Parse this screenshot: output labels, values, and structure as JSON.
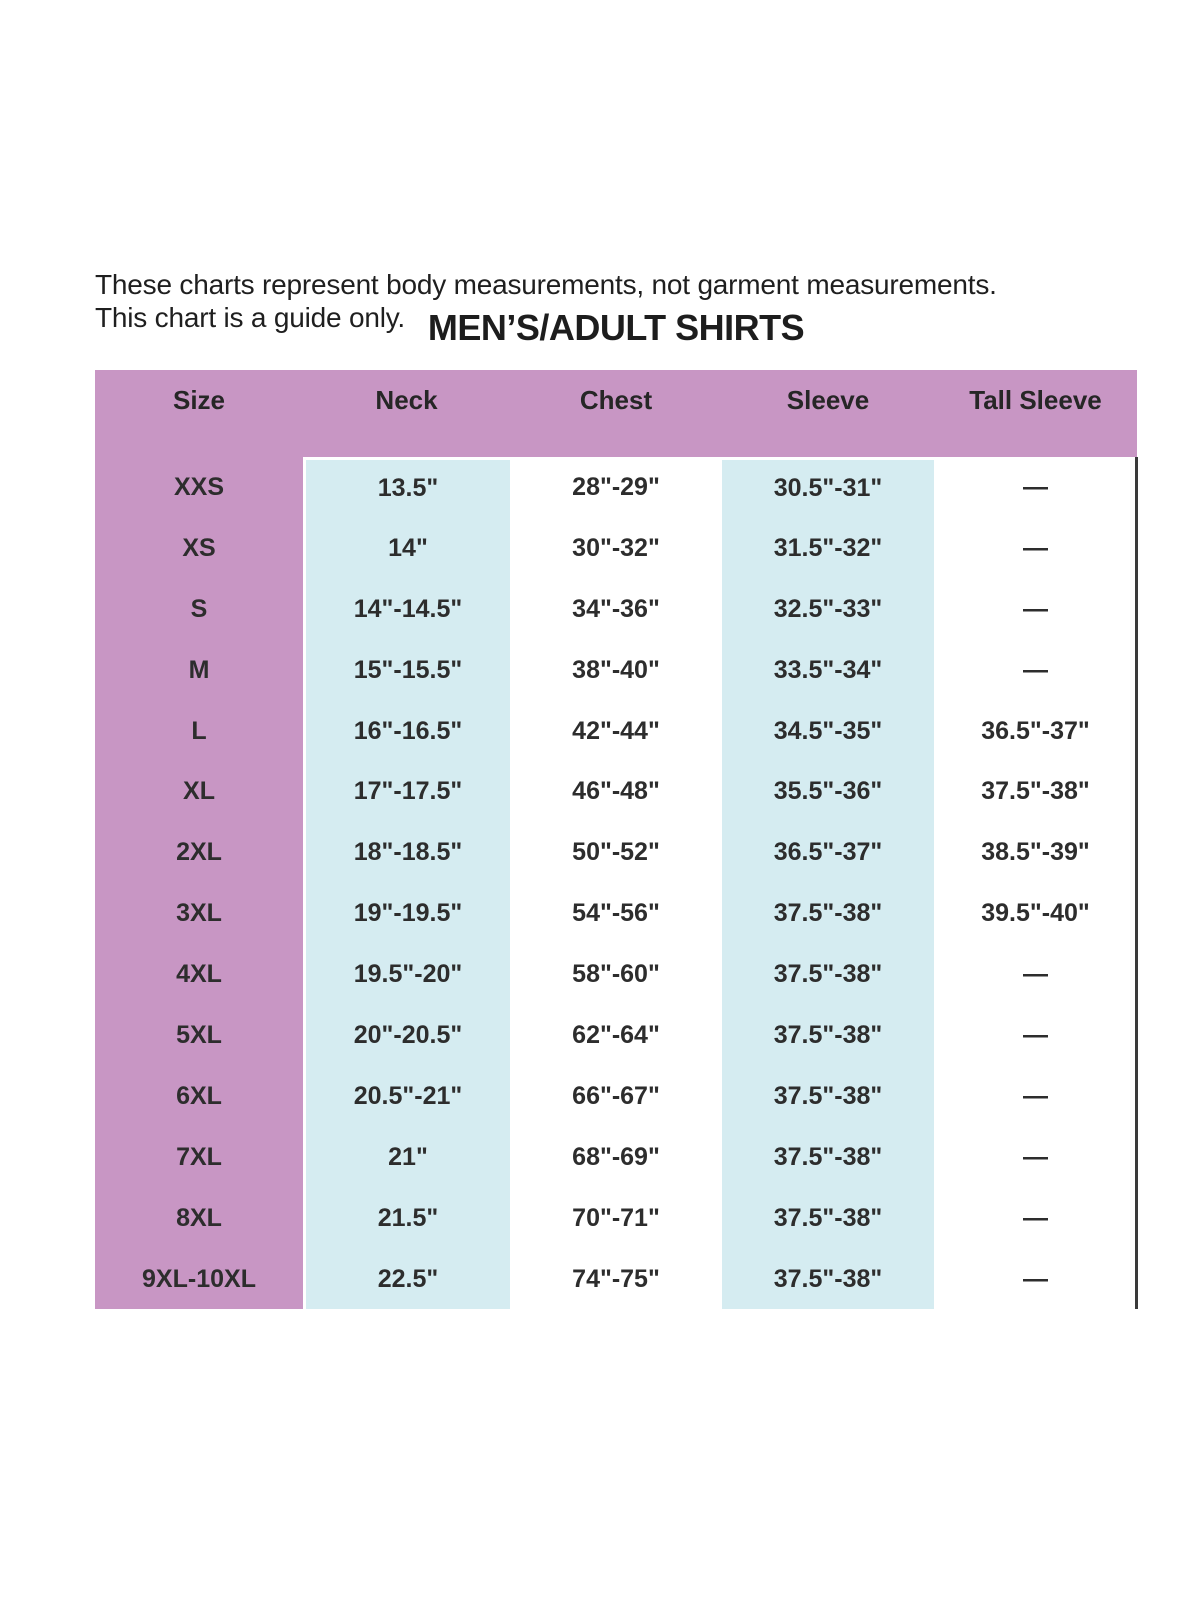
{
  "note": {
    "line1": "These charts represent body measurements, not garment measurements.",
    "line2": "This chart is a guide only."
  },
  "title": "MEN’S/ADULT SHIRTS",
  "empty_marker": "—",
  "colors": {
    "header_bg": "#c896c4",
    "size_column_bg": "#c896c4",
    "band_bg": "#d5ecf1",
    "right_border": "#3a3a3a",
    "page_bg": "#ffffff",
    "text": "#2d2d2d"
  },
  "table": {
    "columns": [
      "Size",
      "Neck",
      "Chest",
      "Sleeve",
      "Tall Sleeve"
    ],
    "rows": [
      [
        "XXS",
        "13.5\"",
        "28\"-29\"",
        "30.5\"-31\"",
        "—"
      ],
      [
        "XS",
        "14\"",
        "30\"-32\"",
        "31.5\"-32\"",
        "—"
      ],
      [
        "S",
        "14\"-14.5\"",
        "34\"-36\"",
        "32.5\"-33\"",
        "—"
      ],
      [
        "M",
        "15\"-15.5\"",
        "38\"-40\"",
        "33.5\"-34\"",
        "—"
      ],
      [
        "L",
        "16\"-16.5\"",
        "42\"-44\"",
        "34.5\"-35\"",
        "36.5\"-37\""
      ],
      [
        "XL",
        "17\"-17.5\"",
        "46\"-48\"",
        "35.5\"-36\"",
        "37.5\"-38\""
      ],
      [
        "2XL",
        "18\"-18.5\"",
        "50\"-52\"",
        "36.5\"-37\"",
        "38.5\"-39\""
      ],
      [
        "3XL",
        "19\"-19.5\"",
        "54\"-56\"",
        "37.5\"-38\"",
        "39.5\"-40\""
      ],
      [
        "4XL",
        "19.5\"-20\"",
        "58\"-60\"",
        "37.5\"-38\"",
        "—"
      ],
      [
        "5XL",
        "20\"-20.5\"",
        "62\"-64\"",
        "37.5\"-38\"",
        "—"
      ],
      [
        "6XL",
        "20.5\"-21\"",
        "66\"-67\"",
        "37.5\"-38\"",
        "—"
      ],
      [
        "7XL",
        "21\"",
        "68\"-69\"",
        "37.5\"-38\"",
        "—"
      ],
      [
        "8XL",
        "21.5\"",
        "70\"-71\"",
        "37.5\"-38\"",
        "—"
      ],
      [
        "9XL-10XL",
        "22.5\"",
        "74\"-75\"",
        "37.5\"-38\"",
        "—"
      ]
    ]
  }
}
